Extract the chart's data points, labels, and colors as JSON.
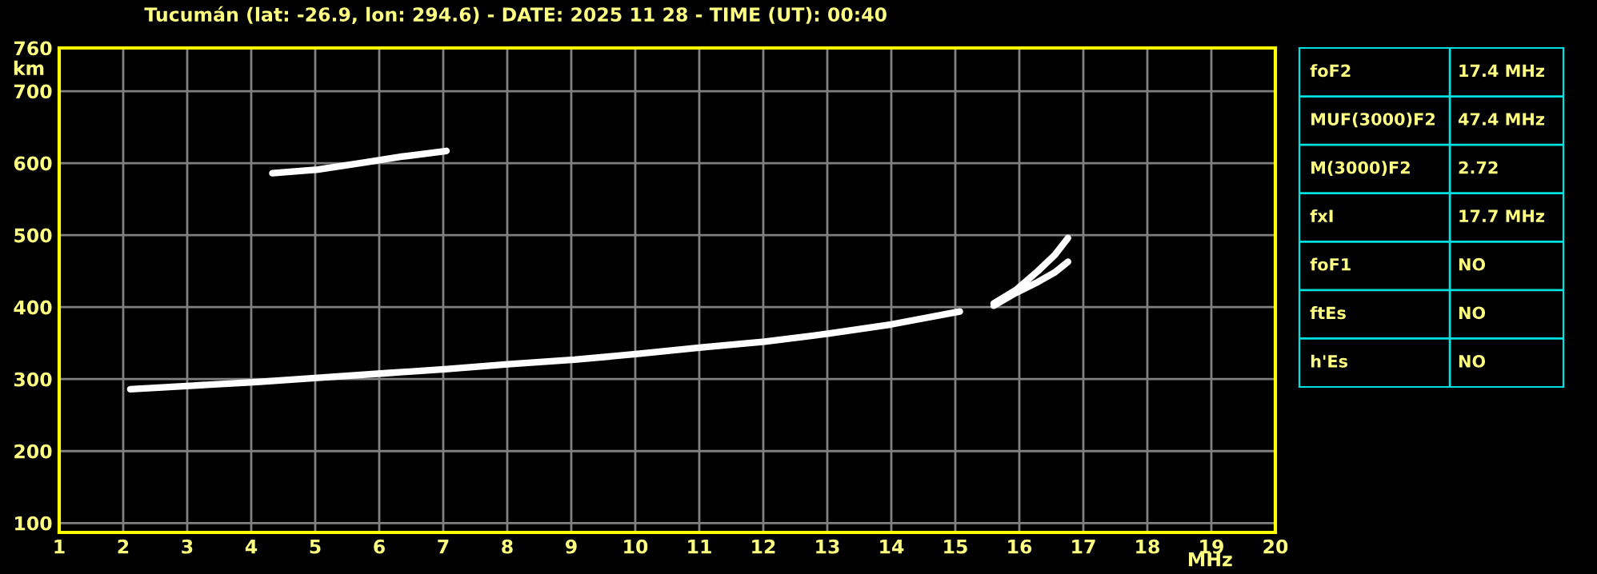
{
  "chart_data": [
    {
      "type": "line",
      "title": "Tucumán (lat: -26.9, lon: 294.6) - DATE: 2025 11 28 - TIME (UT): 00:40",
      "xlabel": "MHz",
      "ylabel": "km",
      "series": [
        {
          "color": "#ffffff",
          "x": [
            2.11,
            3.1,
            4.09,
            5.08,
            6.07,
            7.06,
            8.05,
            9.05,
            10.04,
            11.03,
            12.02,
            13.01,
            14.0,
            15.07
          ],
          "values": [
            286,
            291,
            296,
            302,
            308,
            314,
            321,
            327,
            335,
            344,
            352,
            363,
            376,
            394
          ]
        },
        {
          "color": "#ffffff",
          "x": [
            15.6,
            15.95,
            16.29,
            16.55,
            16.76
          ],
          "values": [
            405,
            424,
            450,
            472,
            496
          ]
        },
        {
          "color": "#ffffff",
          "x": [
            15.6,
            15.95,
            16.29,
            16.55,
            16.76
          ],
          "values": [
            402,
            420,
            435,
            448,
            463
          ]
        },
        {
          "color": "#ffffff",
          "x": [
            4.33,
            5.04,
            5.78,
            6.35,
            7.05
          ],
          "values": [
            586,
            591,
            601,
            609,
            617
          ]
        }
      ],
      "xlim": [
        1,
        20
      ],
      "xticks": [
        1,
        2,
        3,
        4,
        5,
        6,
        7,
        8,
        9,
        10,
        11,
        12,
        13,
        14,
        15,
        16,
        17,
        18,
        19,
        20
      ],
      "ylim": [
        87,
        760
      ],
      "yticks": [
        100,
        200,
        300,
        400,
        500,
        600,
        700,
        760
      ],
      "grid": true
    },
    {
      "type": "other",
      "annotations": [
        "foF2",
        "17.4 MHz",
        "MUF(3000)F2",
        "47.4 MHz",
        "M(3000)F2",
        "2.72",
        "fxI",
        "17.7 MHz",
        "foF1",
        "NO",
        "ftEs",
        "NO",
        "h'Es",
        "NO"
      ]
    }
  ]
}
